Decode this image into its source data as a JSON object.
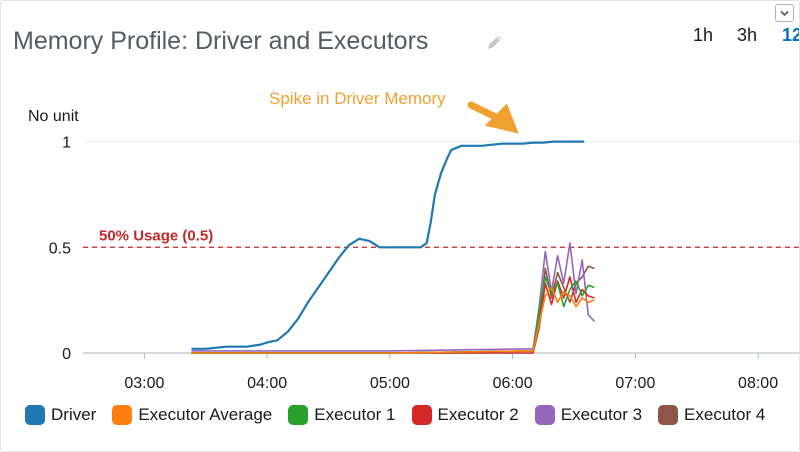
{
  "widget": {
    "title": "Memory Profile: Driver and Executors",
    "time_ranges": [
      "1h",
      "3h",
      "12"
    ],
    "active_range": "12"
  },
  "chart_data": {
    "type": "line",
    "title": "Memory Profile: Driver and Executors",
    "ylabel": "No unit",
    "xlabel": "",
    "xlim": [
      "02:30",
      "08:20"
    ],
    "ylim": [
      0,
      1.05
    ],
    "x_ticks": [
      "03:00",
      "04:00",
      "05:00",
      "06:00",
      "07:00",
      "08:00"
    ],
    "y_ticks": [
      "0",
      "0.5",
      "1"
    ],
    "grid": "horizontal",
    "legend_position": "bottom",
    "series": [
      {
        "name": "Driver",
        "color": "#1f77b4",
        "x": [
          "03:23",
          "03:30",
          "03:40",
          "03:50",
          "03:57",
          "04:00",
          "04:05",
          "04:10",
          "04:15",
          "04:20",
          "04:25",
          "04:30",
          "04:35",
          "04:40",
          "04:45",
          "04:50",
          "04:55",
          "05:00",
          "05:05",
          "05:10",
          "05:15",
          "05:18",
          "05:20",
          "05:22",
          "05:25",
          "05:28",
          "05:30",
          "05:35",
          "05:40",
          "05:45",
          "05:50",
          "05:55",
          "06:00",
          "06:05",
          "06:10",
          "06:15",
          "06:20",
          "06:25",
          "06:30",
          "06:35"
        ],
        "y": [
          0.02,
          0.02,
          0.03,
          0.03,
          0.04,
          0.05,
          0.06,
          0.1,
          0.16,
          0.24,
          0.31,
          0.38,
          0.45,
          0.51,
          0.54,
          0.53,
          0.5,
          0.5,
          0.5,
          0.5,
          0.5,
          0.52,
          0.62,
          0.75,
          0.85,
          0.92,
          0.96,
          0.98,
          0.98,
          0.98,
          0.985,
          0.99,
          0.99,
          0.99,
          0.995,
          0.995,
          1.0,
          1.0,
          1.0,
          1.0
        ]
      },
      {
        "name": "Executor Average",
        "color": "#ff7f0e",
        "x": [
          "03:23",
          "05:00",
          "06:10",
          "06:13",
          "06:16",
          "06:19",
          "06:22",
          "06:25",
          "06:28",
          "06:31",
          "06:34",
          "06:37",
          "06:40"
        ],
        "y": [
          0.0,
          0.0,
          0.01,
          0.14,
          0.27,
          0.31,
          0.24,
          0.29,
          0.27,
          0.22,
          0.26,
          0.24,
          0.25
        ]
      },
      {
        "name": "Executor 1",
        "color": "#2ca02c",
        "x": [
          "03:23",
          "05:00",
          "06:10",
          "06:13",
          "06:16",
          "06:19",
          "06:22",
          "06:25",
          "06:28",
          "06:31",
          "06:34",
          "06:37",
          "06:40"
        ],
        "y": [
          0.0,
          0.0,
          0.01,
          0.2,
          0.36,
          0.28,
          0.33,
          0.22,
          0.3,
          0.34,
          0.27,
          0.32,
          0.31
        ]
      },
      {
        "name": "Executor 2",
        "color": "#d62728",
        "x": [
          "03:23",
          "05:00",
          "06:10",
          "06:13",
          "06:16",
          "06:19",
          "06:22",
          "06:25",
          "06:28",
          "06:31",
          "06:34",
          "06:37",
          "06:40"
        ],
        "y": [
          0.0,
          0.0,
          0.0,
          0.12,
          0.33,
          0.23,
          0.34,
          0.26,
          0.36,
          0.24,
          0.3,
          0.27,
          0.26
        ]
      },
      {
        "name": "Executor 3",
        "color": "#9467bd",
        "x": [
          "03:23",
          "05:00",
          "06:10",
          "06:13",
          "06:16",
          "06:19",
          "06:22",
          "06:25",
          "06:28",
          "06:31",
          "06:34",
          "06:37",
          "06:40"
        ],
        "y": [
          0.01,
          0.01,
          0.02,
          0.22,
          0.48,
          0.29,
          0.46,
          0.33,
          0.52,
          0.28,
          0.44,
          0.18,
          0.15
        ]
      },
      {
        "name": "Executor 4",
        "color": "#8c564b",
        "x": [
          "03:23",
          "05:00",
          "06:10",
          "06:13",
          "06:16",
          "06:19",
          "06:22",
          "06:25",
          "06:28",
          "06:31",
          "06:34",
          "06:37",
          "06:40"
        ],
        "y": [
          0.0,
          0.0,
          0.01,
          0.15,
          0.4,
          0.26,
          0.38,
          0.31,
          0.24,
          0.33,
          0.36,
          0.41,
          0.4
        ]
      }
    ],
    "extra_series_colors": [
      "#e377c2",
      "#7f7f7f",
      "#bcbd22",
      "#17becf",
      "#aec7e8",
      "#98df8a"
    ],
    "reference_line": {
      "label": "50% Usage (0.5)",
      "value": 0.5,
      "color": "#c62828"
    },
    "annotations": [
      {
        "text": "Spike in Driver Memory",
        "color": "#f0a030",
        "points_to": {
          "x": "06:05",
          "y": 1.0
        }
      }
    ]
  }
}
